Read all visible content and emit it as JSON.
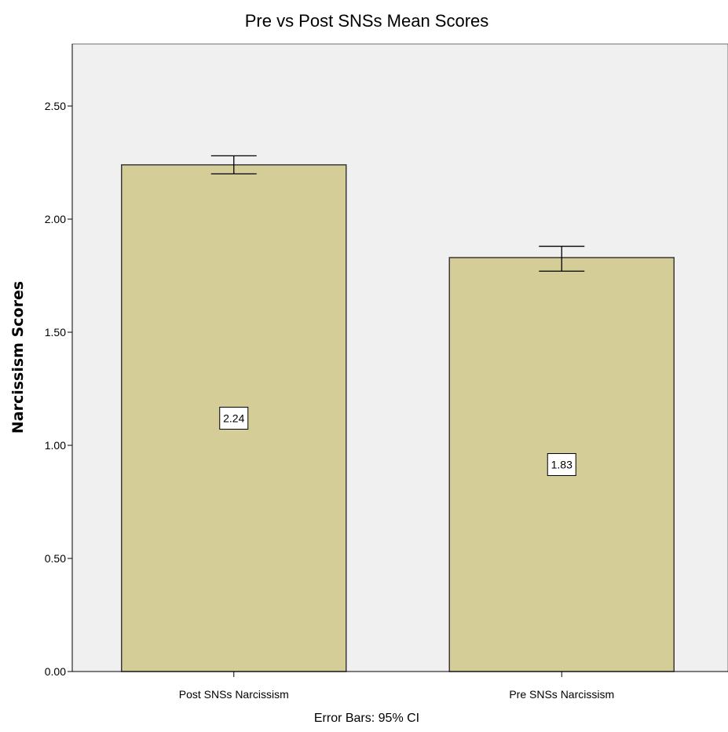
{
  "chart_data": {
    "type": "bar",
    "title": "Pre vs Post SNSs Mean Scores",
    "xlabel": "",
    "ylabel": "Narcissism Scores",
    "footnote": "Error Bars: 95% CI",
    "categories": [
      "Post SNSs Narcissism",
      "Pre SNSs Narcissism"
    ],
    "values": [
      2.24,
      1.83
    ],
    "data_labels": [
      "2.24",
      "1.83"
    ],
    "error_bars": [
      {
        "low": 2.2,
        "high": 2.28
      },
      {
        "low": 1.77,
        "high": 1.88
      }
    ],
    "ylim": [
      0,
      2.5
    ],
    "yticks": [
      0,
      0.5,
      1.0,
      1.5,
      2.0,
      2.5
    ],
    "ytick_labels": [
      "0.00",
      "0.50",
      "1.00",
      "1.50",
      "2.00",
      "2.50"
    ],
    "grid": false,
    "colors": {
      "bar_fill": "#d4cd97",
      "bar_stroke": "#3a3a3a",
      "plot_bg": "#f0f0f0"
    }
  }
}
